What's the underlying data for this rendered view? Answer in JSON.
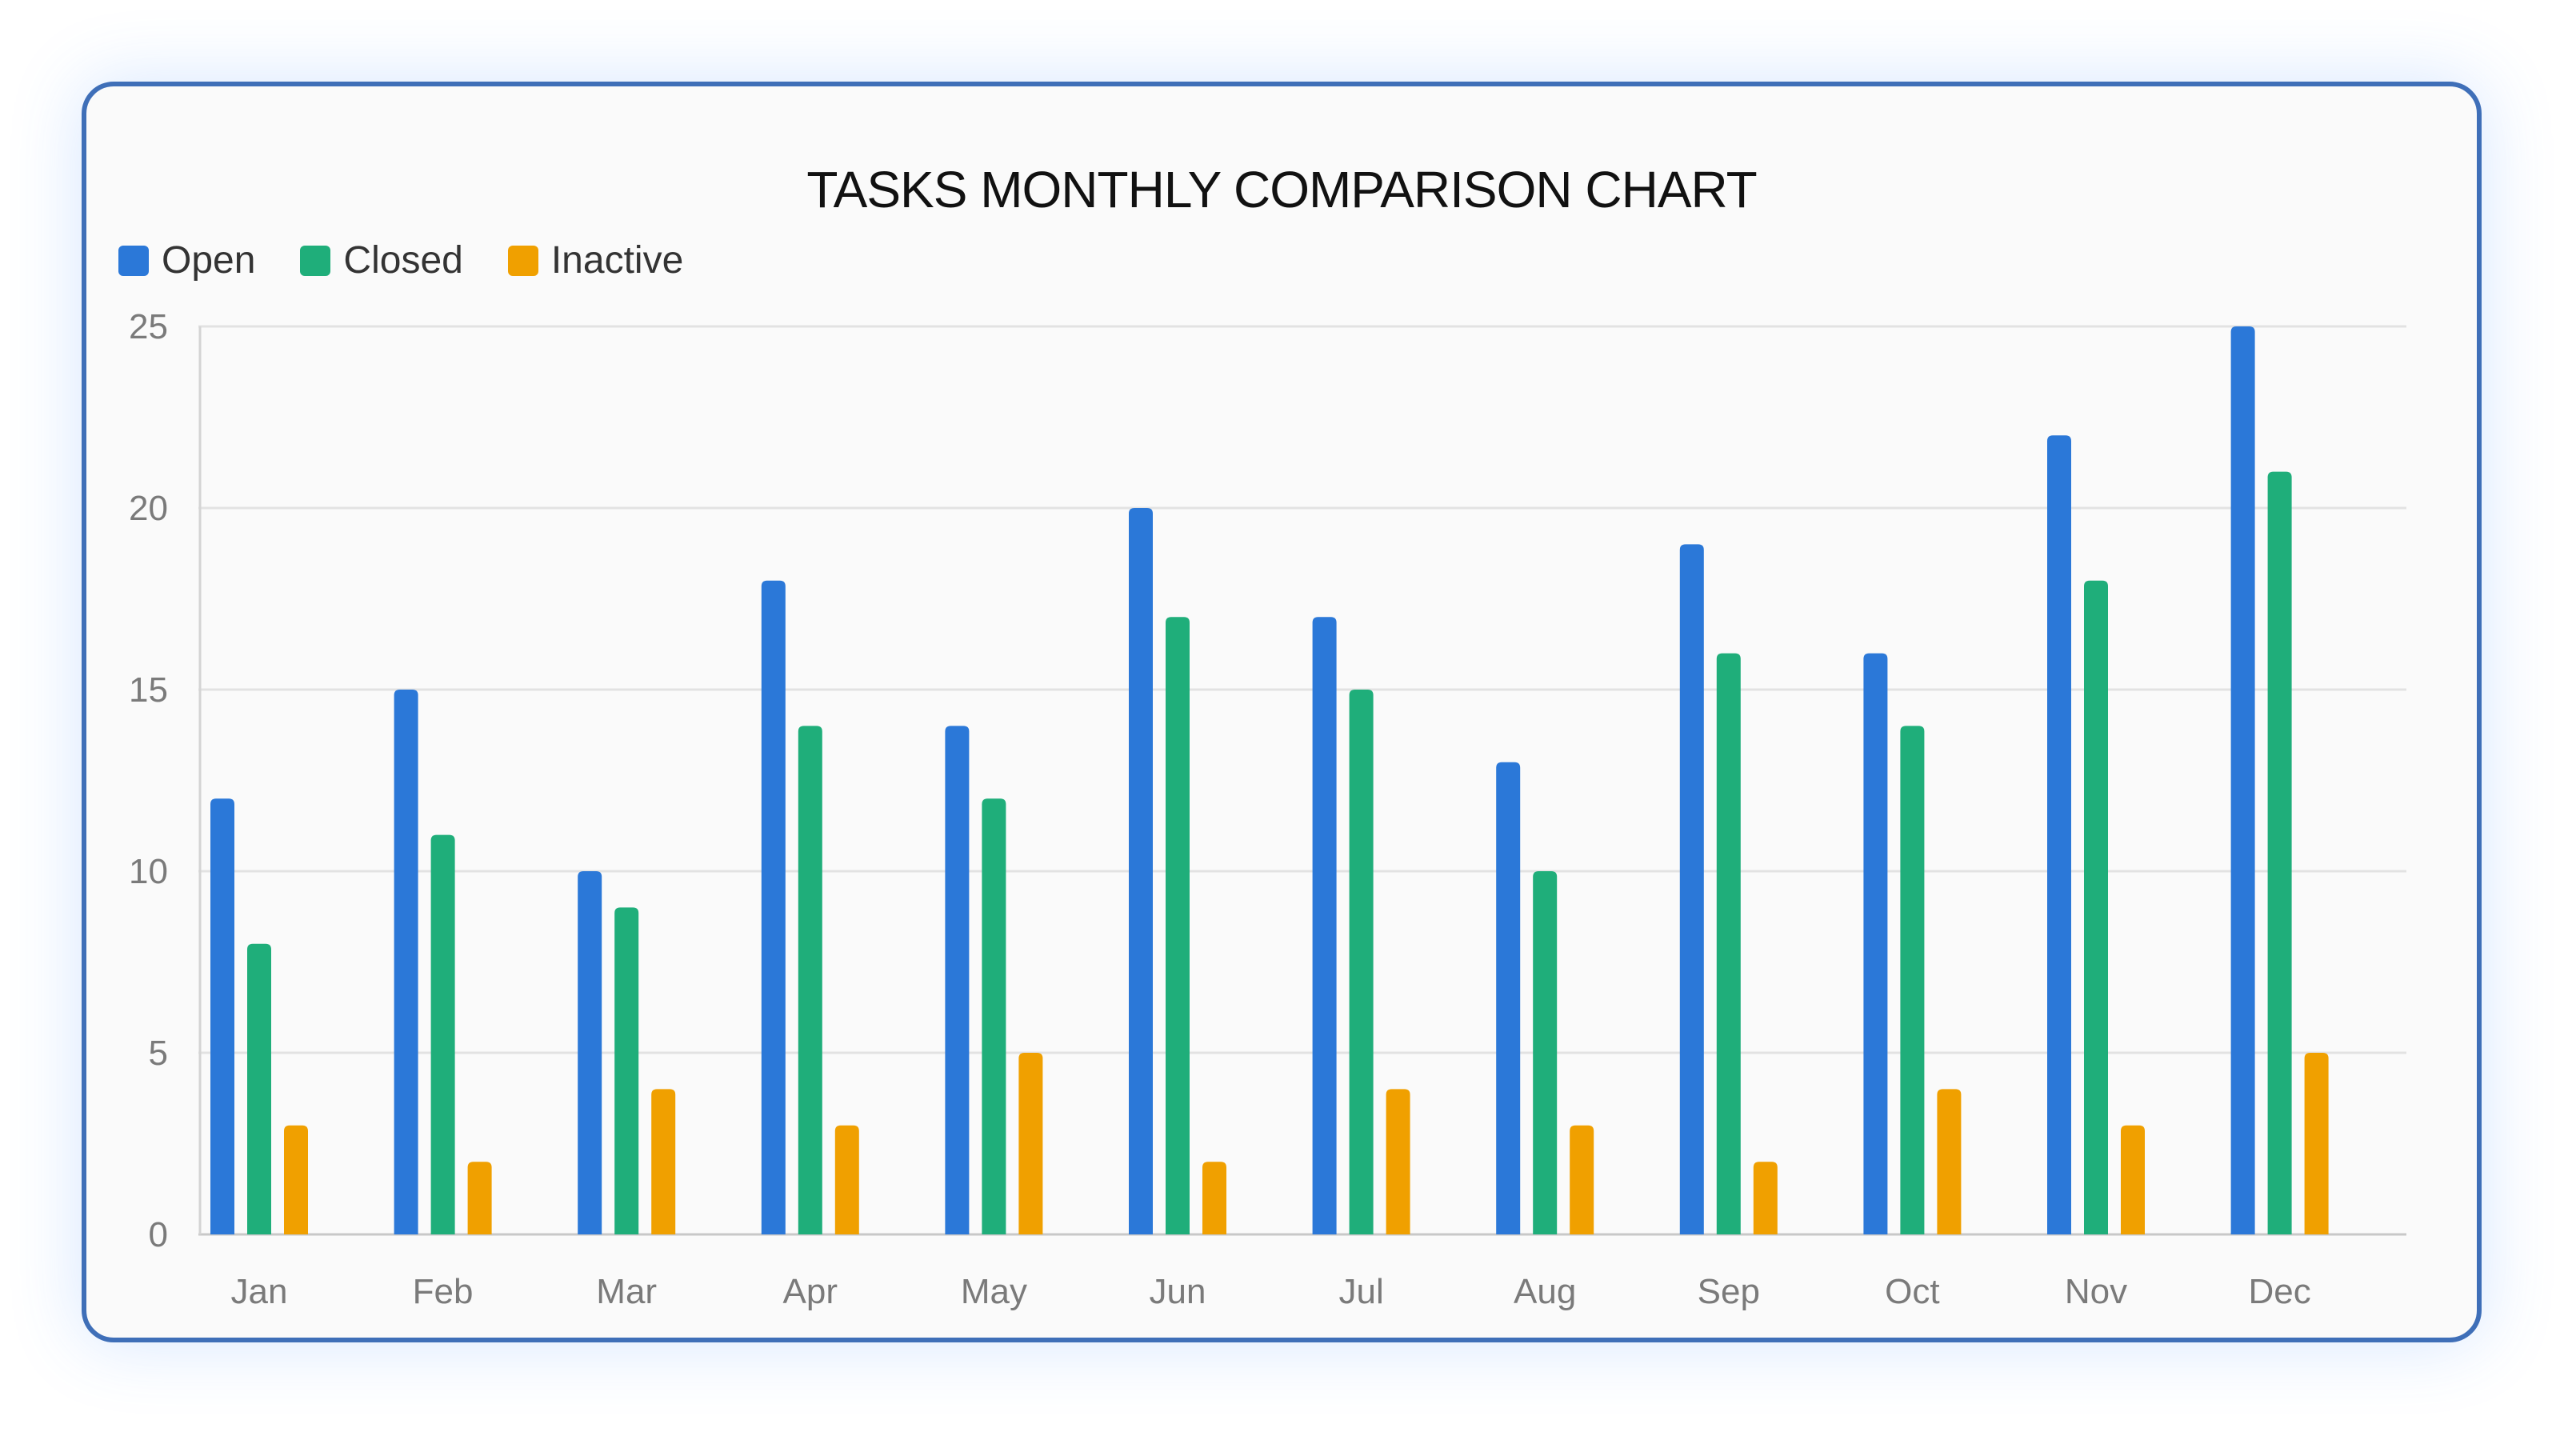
{
  "chart_data": {
    "type": "bar",
    "title": "TASKS MONTHLY COMPARISON CHART",
    "categories": [
      "Jan",
      "Feb",
      "Mar",
      "Apr",
      "May",
      "Jun",
      "Jul",
      "Aug",
      "Sep",
      "Oct",
      "Nov",
      "Dec"
    ],
    "series": [
      {
        "name": "Open",
        "color": "#2b78d8",
        "values": [
          12,
          15,
          10,
          18,
          14,
          20,
          17,
          13,
          19,
          16,
          22,
          25
        ]
      },
      {
        "name": "Closed",
        "color": "#1fae7a",
        "values": [
          8,
          11,
          9,
          14,
          12,
          17,
          15,
          10,
          16,
          14,
          18,
          21
        ]
      },
      {
        "name": "Inactive",
        "color": "#f0a000",
        "values": [
          3,
          2,
          4,
          3,
          5,
          2,
          4,
          3,
          2,
          4,
          3,
          5
        ]
      }
    ],
    "yticks": [
      0,
      5,
      10,
      15,
      20,
      25
    ],
    "ylim": [
      0,
      25
    ],
    "xlabel": "",
    "ylabel": "",
    "grid": true,
    "legend": "top-left"
  }
}
